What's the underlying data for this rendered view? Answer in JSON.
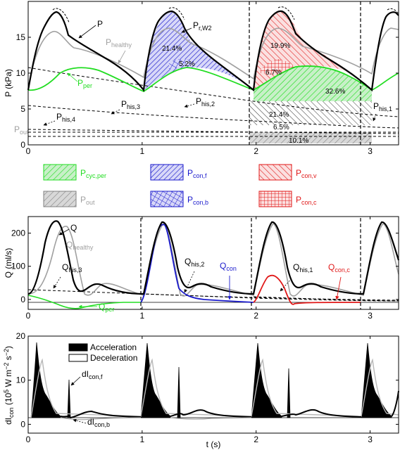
{
  "colors": {
    "black": "#000000",
    "gray": "#a0a0a0",
    "green": "#22dd22",
    "blue": "#1a1acc",
    "red": "#e01818",
    "fill_green": "#c8f0c8",
    "fill_blue": "#c8c8f0",
    "fill_red": "#f4c8c8",
    "fill_gray": "#c8c8c8"
  },
  "chart_data": [
    {
      "type": "line",
      "ylabel": "P (kPa)",
      "xlim": [
        0,
        3.25
      ],
      "ylim": [
        0,
        20
      ],
      "xticks": [
        "0",
        "1",
        "2",
        "3"
      ],
      "yticks": [
        "0",
        "5",
        "10",
        "15"
      ],
      "vlines": [
        1.93,
        2.86
      ],
      "series": [
        {
          "name": "P",
          "x": [
            0,
            0.05,
            0.1,
            0.15,
            0.2,
            0.25,
            0.3,
            0.35,
            0.4,
            0.45,
            0.5,
            0.6,
            0.7,
            0.8,
            0.9,
            1.0
          ],
          "y": [
            8.2,
            11,
            14.5,
            17.3,
            18.6,
            18.8,
            17.2,
            15.5,
            14.8,
            14.3,
            14.0,
            13.2,
            12.2,
            11.0,
            9.8,
            8.3
          ]
        },
        {
          "name": "P_healthy",
          "x": [
            0,
            0.05,
            0.1,
            0.15,
            0.2,
            0.25,
            0.3,
            0.35,
            0.4,
            0.5,
            0.6,
            0.7,
            0.8,
            0.9,
            1.0
          ],
          "y": [
            8.3,
            10.5,
            13.5,
            15.5,
            16.0,
            15.5,
            14.8,
            15.2,
            14.7,
            13.8,
            13.0,
            12.3,
            11.5,
            10.5,
            9.2
          ]
        },
        {
          "name": "P_per",
          "x": [
            0,
            0.1,
            0.2,
            0.3,
            0.4,
            0.5,
            0.6,
            0.7,
            0.8,
            0.9,
            1.0
          ],
          "y": [
            8.0,
            7.5,
            8.5,
            10.0,
            11.0,
            11.3,
            11.2,
            10.6,
            9.8,
            8.9,
            8.1
          ]
        },
        {
          "name": "P_his,2",
          "x": [
            0,
            0.5,
            1.0,
            1.5,
            2.0,
            2.5,
            3.0,
            3.25
          ],
          "y": [
            10.1,
            8.8,
            7.6,
            6.5,
            5.7,
            5.0,
            4.3,
            4.0
          ]
        },
        {
          "name": "P_his,3",
          "x": [
            0,
            0.5,
            1.0,
            1.5,
            2.0,
            2.5,
            3.0,
            3.25
          ],
          "y": [
            5.5,
            4.6,
            3.9,
            3.3,
            2.9,
            2.5,
            2.1,
            1.9
          ]
        },
        {
          "name": "P_his,4",
          "x": [
            0,
            1.0,
            2.0,
            3.25
          ],
          "y": [
            2.5,
            2.1,
            1.8,
            1.6
          ]
        },
        {
          "name": "P_out",
          "x": [
            0,
            3.25
          ],
          "y": [
            1.1,
            1.1
          ]
        }
      ],
      "annotations": [
        "P",
        "Phealthy",
        "Pper",
        "Pr,W2",
        "Phis,1",
        "Phis,2",
        "Phis,3",
        "Phis,4",
        "Pout",
        "21.4%",
        "5.2%",
        "19.9%",
        "6.7%",
        "32.6%",
        "21.4%",
        "6.5%",
        "10.1%"
      ]
    },
    {
      "type": "line",
      "ylabel": "Q (ml/s)",
      "xlim": [
        0,
        3.25
      ],
      "ylim": [
        -30,
        250
      ],
      "xticks": [
        "0",
        "1",
        "2",
        "3"
      ],
      "yticks": [
        "0",
        "100",
        "200"
      ],
      "vlines": [
        0.97,
        1.93,
        2.86
      ],
      "series": [
        {
          "name": "Q",
          "x": [
            0,
            0.05,
            0.1,
            0.15,
            0.2,
            0.25,
            0.3,
            0.35,
            0.4,
            0.45,
            0.5,
            0.6,
            0.7,
            0.8,
            0.9,
            1.0
          ],
          "y": [
            28,
            30,
            100,
            200,
            238,
            225,
            160,
            80,
            30,
            45,
            55,
            45,
            30,
            30,
            28,
            28
          ]
        },
        {
          "name": "Q_healthy",
          "x": [
            0,
            0.1,
            0.15,
            0.2,
            0.25,
            0.3,
            0.35,
            0.4,
            0.45,
            0.5,
            0.6,
            0.7,
            0.8,
            0.9,
            1.0
          ],
          "y": [
            25,
            40,
            120,
            215,
            225,
            160,
            90,
            30,
            20,
            40,
            50,
            40,
            30,
            28,
            25
          ]
        },
        {
          "name": "Q_per",
          "x": [
            0,
            0.1,
            0.2,
            0.3,
            0.4,
            0.5,
            0.6,
            0.7,
            0.8,
            0.9,
            1.0
          ],
          "y": [
            5,
            -3,
            -10,
            -18,
            -12,
            -5,
            2,
            3,
            3,
            2,
            1
          ]
        },
        {
          "name": "Q_con",
          "x": [
            0.97,
            1.0,
            1.05,
            1.1,
            1.15,
            1.2,
            1.25,
            1.3,
            1.4,
            1.5,
            1.6,
            1.7,
            1.8,
            1.93
          ],
          "y": [
            0,
            10,
            80,
            180,
            225,
            180,
            100,
            30,
            15,
            10,
            5,
            3,
            2,
            0
          ]
        },
        {
          "name": "Q_con,c",
          "x": [
            1.93,
            2.0,
            2.05,
            2.1,
            2.15,
            2.2,
            2.25,
            2.3,
            2.4,
            2.5,
            2.7,
            2.86
          ],
          "y": [
            0,
            20,
            60,
            78,
            70,
            40,
            -10,
            2,
            2,
            1,
            0,
            0
          ]
        },
        {
          "name": "Q_his,1",
          "x": [
            1.93,
            2.4,
            2.86,
            3.25
          ],
          "y": [
            15,
            10,
            8,
            6
          ]
        },
        {
          "name": "Q_his,2",
          "x": [
            0.97,
            1.5,
            1.93,
            3.25
          ],
          "y": [
            22,
            17,
            13,
            8
          ]
        },
        {
          "name": "Q_his,3",
          "x": [
            0,
            0.5,
            0.97,
            2,
            3.25
          ],
          "y": [
            40,
            33,
            28,
            18,
            12
          ]
        }
      ],
      "annotations": [
        "Q",
        "Qhealthy",
        "Qper",
        "Qhis,1",
        "Qhis,2",
        "Qhis,3",
        "Qcon",
        "Qcon,c"
      ]
    },
    {
      "type": "area",
      "xlabel": "t (s)",
      "ylabel": "dIcon (10^5 W m^-2 s^-2)",
      "xlim": [
        0,
        3.25
      ],
      "ylim": [
        -2,
        20
      ],
      "xticks": [
        "0",
        "1",
        "2",
        "3"
      ],
      "yticks": [
        "0",
        "10",
        "20"
      ],
      "series": [
        {
          "name": "dIcon,f",
          "x": [
            0,
            0.05,
            0.07,
            0.1,
            0.15,
            0.2,
            0.25,
            0.3,
            0.35,
            0.37,
            0.4,
            0.5,
            0.6,
            0.8,
            1.0
          ],
          "y": [
            0,
            5,
            19,
            13,
            9,
            5,
            3,
            1,
            5,
            13,
            1,
            0.5,
            0.3,
            0,
            0
          ]
        },
        {
          "name": "dIcon,b",
          "x": [
            0,
            0.2,
            0.3,
            0.4,
            0.6,
            0.8,
            1.0
          ],
          "y": [
            0,
            -0.3,
            -0.5,
            -1.0,
            -0.5,
            -0.2,
            0
          ]
        }
      ],
      "annotations": [
        "dIcon,f",
        "dIcon,b"
      ]
    }
  ],
  "legend": {
    "items": [
      {
        "base": "P",
        "sub": "cyc,per",
        "color": "#22dd22",
        "pattern": "green"
      },
      {
        "base": "P",
        "sub": "con,f",
        "color": "#1a1acc",
        "pattern": "blue-diag"
      },
      {
        "base": "P",
        "sub": "con,v",
        "color": "#e01818",
        "pattern": "red-diag"
      },
      {
        "base": "P",
        "sub": "out",
        "color": "#a0a0a0",
        "pattern": "gray"
      },
      {
        "base": "P",
        "sub": "con,b",
        "color": "#1a1acc",
        "pattern": "blue-grid"
      },
      {
        "base": "P",
        "sub": "con,c",
        "color": "#e01818",
        "pattern": "red-grid"
      }
    ],
    "accel": "Acceleration",
    "decel": "Deceleration"
  },
  "labels": {
    "p_ylabel": "P (kPa)",
    "q_ylabel": "Q (ml/s)",
    "di_ylabel_main": "dI",
    "di_ylabel_sub": "con",
    "di_ylabel_units": " (10",
    "di_ylabel_units2": "5",
    "di_ylabel_units3": " W m",
    "di_ylabel_units4": "−2",
    "di_ylabel_units5": " s",
    "di_ylabel_units6": "−2",
    "di_ylabel_units7": ")",
    "xlabel": "t (s)",
    "P": "P",
    "Phealthy_b": "P",
    "Phealthy_s": "healthy",
    "Pper_b": "P",
    "Pper_s": "per",
    "PrW2_b": "P",
    "PrW2_s": "r,W2",
    "Phis1_b": "P",
    "Phis1_s": "his,1",
    "Phis2_b": "P",
    "Phis2_s": "his,2",
    "Phis3_b": "P",
    "Phis3_s": "his,3",
    "Phis4_b": "P",
    "Phis4_s": "his,4",
    "Pout_b": "P",
    "Pout_s": "out",
    "pct1": "21.4%",
    "pct2": "5.2%",
    "pct3": "19.9%",
    "pct4": "6.7%",
    "pct5": "32.6%",
    "pct6": "21.4%",
    "pct7": "6.5%",
    "pct8": "10.1%",
    "Q": "Q",
    "Qhealthy_b": "Q",
    "Qhealthy_s": "healthy",
    "Qper_b": "Q",
    "Qper_s": "per",
    "Qhis1_b": "Q",
    "Qhis1_s": "his,1",
    "Qhis2_b": "Q",
    "Qhis2_s": "his,2",
    "Qhis3_b": "Q",
    "Qhis3_s": "his,3",
    "Qcon_b": "Q",
    "Qcon_s": "con",
    "Qconc_b": "Q",
    "Qconc_s": "con,c",
    "dIf_b": "dI",
    "dIf_s": "con,f",
    "dIb_b": "dI",
    "dIb_s": "con,b"
  },
  "ticks": {
    "x": [
      "0",
      "1",
      "2",
      "3"
    ],
    "p_y": [
      "0",
      "5",
      "10",
      "15"
    ],
    "q_y": [
      "0",
      "100",
      "200"
    ],
    "di_y": [
      "0",
      "10",
      "20"
    ]
  }
}
